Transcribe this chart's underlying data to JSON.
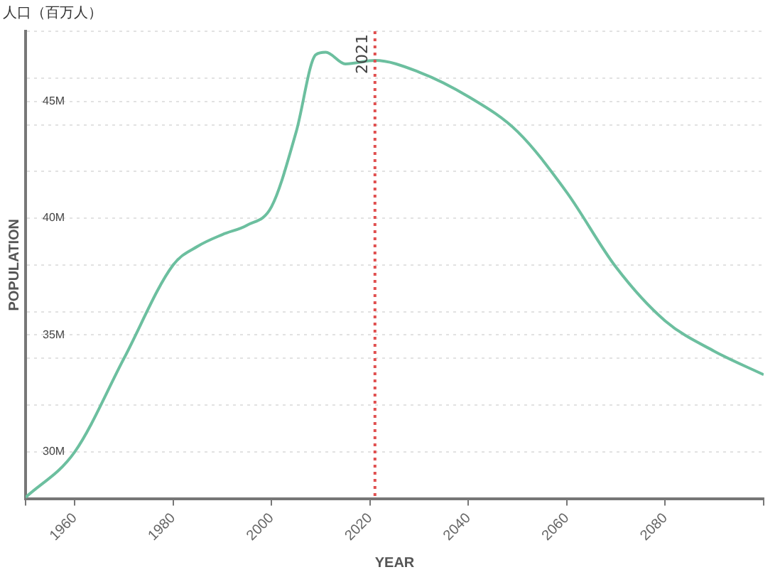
{
  "chart_data": {
    "type": "line",
    "title": "人口（百万人）",
    "xlabel": "YEAR",
    "ylabel": "POPULATION",
    "x": [
      1950,
      1960,
      1970,
      1980,
      1985,
      1990,
      1995,
      2000,
      2005,
      2009,
      2011,
      2015,
      2021,
      2030,
      2040,
      2050,
      2060,
      2070,
      2080,
      2090,
      2100
    ],
    "series": [
      {
        "color": "#6cbf9f",
        "values": [
          28.05,
          30.0,
          34.0,
          38.0,
          38.8,
          39.3,
          39.7,
          40.5,
          43.7,
          47.0,
          47.1,
          46.6,
          46.75,
          46.25,
          45.2,
          43.7,
          41.1,
          37.9,
          35.6,
          34.3,
          33.3
        ]
      }
    ],
    "xlim": [
      1950,
      2100
    ],
    "xticks": [
      {
        "value": 1950,
        "label": null
      },
      1960,
      1980,
      2000,
      2020,
      2040,
      2060,
      2080,
      {
        "value": 2100,
        "label": null
      }
    ],
    "ylim": [
      28,
      48
    ],
    "yticks": [
      {
        "value": 28,
        "label": null
      },
      {
        "value": 30,
        "label": "30M"
      },
      {
        "value": 32,
        "label": null
      },
      {
        "value": 34,
        "label": null
      },
      {
        "value": 35,
        "label": "35M"
      },
      {
        "value": 36,
        "label": null
      },
      {
        "value": 38,
        "label": null
      },
      {
        "value": 40,
        "label": "40M"
      },
      {
        "value": 42,
        "label": null
      },
      {
        "value": 44,
        "label": null
      },
      {
        "value": 45,
        "label": "45M"
      },
      {
        "value": 46,
        "label": null
      },
      {
        "value": 48,
        "label": null
      }
    ],
    "grid": "y",
    "legend": false,
    "marker": "none",
    "line_style": "solid",
    "ref_lines": [
      {
        "axis": "x",
        "value": 2021,
        "label": "2021",
        "color": "#e05050",
        "line_style": "dotted"
      }
    ]
  }
}
